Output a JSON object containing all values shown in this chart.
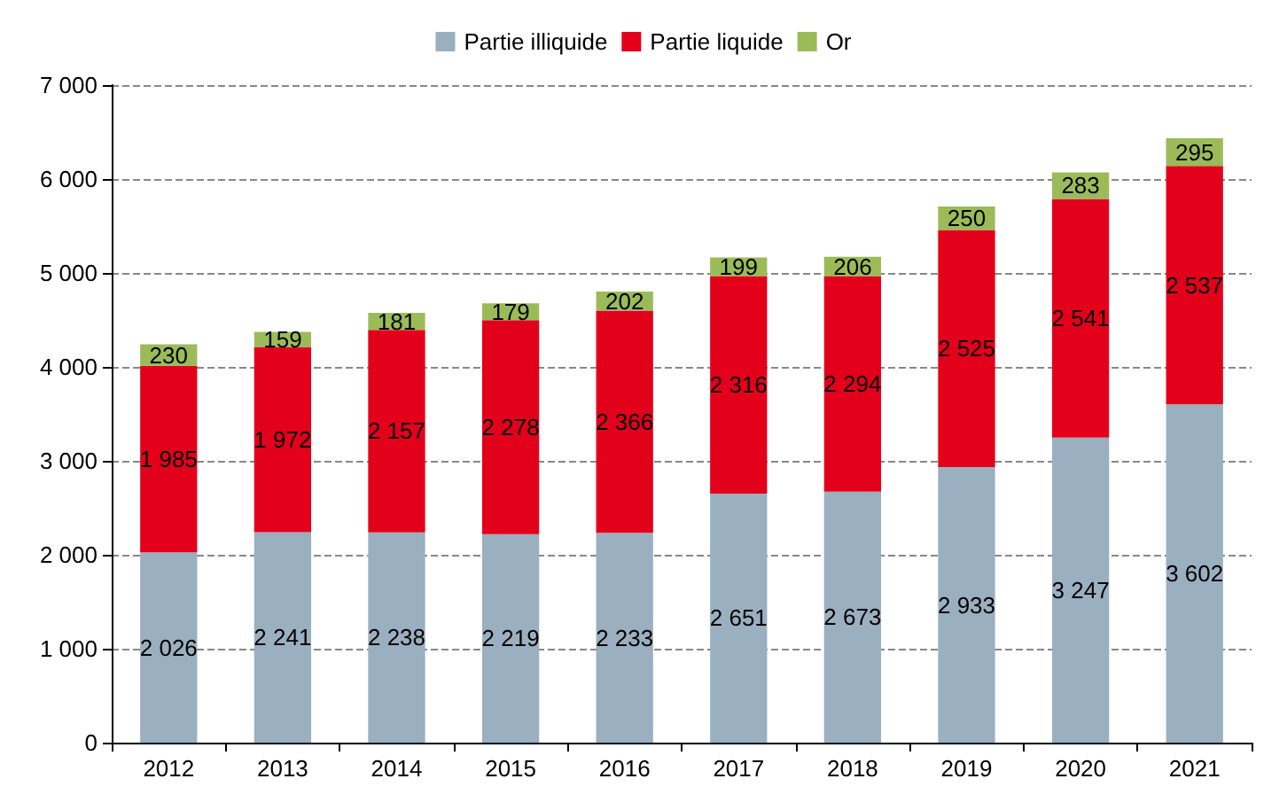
{
  "chart_data": {
    "type": "bar",
    "stacked": true,
    "categories": [
      "2012",
      "2013",
      "2014",
      "2015",
      "2016",
      "2017",
      "2018",
      "2019",
      "2020",
      "2021"
    ],
    "series": [
      {
        "name": "Partie illiquide",
        "color": "#9aafbf",
        "values": [
          2026,
          2241,
          2238,
          2219,
          2233,
          2651,
          2673,
          2933,
          3247,
          3602
        ],
        "value_labels": [
          "2 026",
          "2 241",
          "2 238",
          "2 219",
          "2 233",
          "2 651",
          "2 673",
          "2 933",
          "3 247",
          "3 602"
        ]
      },
      {
        "name": "Partie liquide",
        "color": "#e3001b",
        "values": [
          1985,
          1972,
          2157,
          2278,
          2366,
          2316,
          2294,
          2525,
          2541,
          2537
        ],
        "value_labels": [
          "1 985",
          "1 972",
          "2 157",
          "2 278",
          "2 366",
          "2 316",
          "2 294",
          "2 525",
          "2 541",
          "2 537"
        ]
      },
      {
        "name": "Or",
        "color": "#9bbb59",
        "values": [
          230,
          159,
          181,
          179,
          202,
          199,
          206,
          250,
          283,
          295
        ],
        "value_labels": [
          "230",
          "159",
          "181",
          "179",
          "202",
          "199",
          "206",
          "250",
          "283",
          "295"
        ]
      }
    ],
    "ylim": [
      0,
      7000
    ],
    "yticks": [
      {
        "value": 0,
        "label": "0"
      },
      {
        "value": 1000,
        "label": "1 000"
      },
      {
        "value": 2000,
        "label": "2 000"
      },
      {
        "value": 3000,
        "label": "3 000"
      },
      {
        "value": 4000,
        "label": "4 000"
      },
      {
        "value": 5000,
        "label": "5 000"
      },
      {
        "value": 6000,
        "label": "6 000"
      },
      {
        "value": 7000,
        "label": "7 000"
      }
    ],
    "grid": "y",
    "legend": "top"
  }
}
